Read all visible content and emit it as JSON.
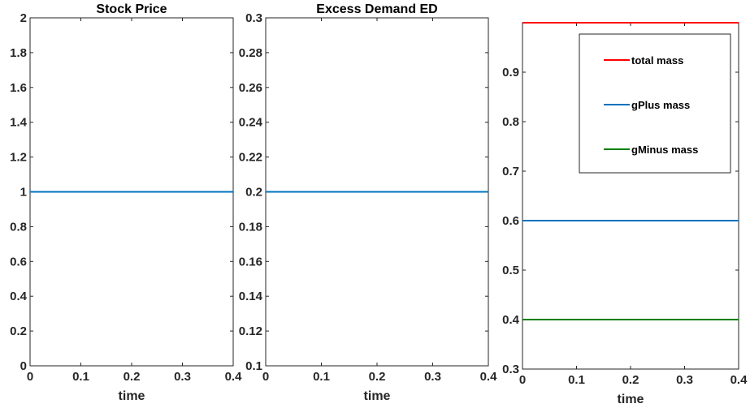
{
  "chart_data": [
    {
      "type": "line",
      "title": "Stock Price",
      "xlabel": "time",
      "ylabel": "",
      "xlim": [
        0,
        0.4
      ],
      "ylim": [
        0,
        2
      ],
      "xticks": [
        "0",
        "0.1",
        "0.2",
        "0.3",
        "0.4"
      ],
      "yticks": [
        "0",
        "0.2",
        "0.4",
        "0.6",
        "0.8",
        "1",
        "1.2",
        "1.4",
        "1.6",
        "1.8",
        "2"
      ],
      "grid": false,
      "series": [
        {
          "color": "#0072BD",
          "x": [
            0,
            0.4
          ],
          "y": [
            1,
            1
          ]
        }
      ]
    },
    {
      "type": "line",
      "title": "Excess Demand ED",
      "xlabel": "time",
      "ylabel": "",
      "xlim": [
        0,
        0.4
      ],
      "ylim": [
        0.1,
        0.3
      ],
      "xticks": [
        "0",
        "0.1",
        "0.2",
        "0.3",
        "0.4"
      ],
      "yticks": [
        "0.1",
        "0.12",
        "0.14",
        "0.16",
        "0.18",
        "0.2",
        "0.22",
        "0.24",
        "0.26",
        "0.28",
        "0.3"
      ],
      "grid": false,
      "series": [
        {
          "color": "#0072BD",
          "x": [
            0,
            0.4
          ],
          "y": [
            0.2,
            0.2
          ]
        }
      ]
    },
    {
      "type": "line",
      "title": "",
      "xlabel": "time",
      "ylabel": "",
      "xlim": [
        0,
        0.4
      ],
      "ylim": [
        0.3,
        1.0
      ],
      "xticks": [
        "0",
        "0.1",
        "0.2",
        "0.3",
        "0.4"
      ],
      "yticks": [
        "0.3",
        "0.4",
        "0.5",
        "0.6",
        "0.7",
        "0.8",
        "0.9"
      ],
      "grid": false,
      "legend": "top-right",
      "series": [
        {
          "name": "total mass",
          "color": "#FF0000",
          "x": [
            0,
            0.4
          ],
          "y": [
            1,
            1
          ]
        },
        {
          "name": "gPlus mass",
          "color": "#0072BD",
          "x": [
            0,
            0.4
          ],
          "y": [
            0.6,
            0.6
          ]
        },
        {
          "name": "gMinus mass",
          "color": "#008000",
          "x": [
            0,
            0.4
          ],
          "y": [
            0.4,
            0.4
          ]
        }
      ]
    }
  ]
}
